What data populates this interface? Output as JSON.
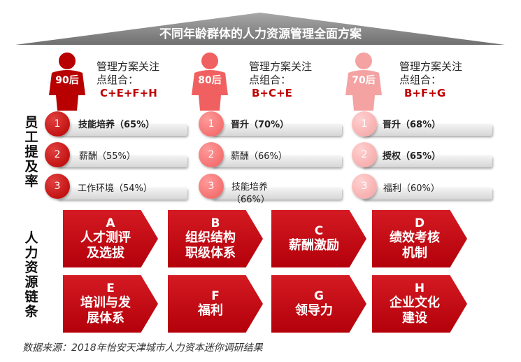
{
  "title": "不同年龄群体的人力资源管理全面方案",
  "groups": [
    {
      "gen": "90后",
      "focus_label_1": "管理方案关注",
      "focus_label_2": "点组合：",
      "combo": "C+E+F+H"
    },
    {
      "gen": "80后",
      "focus_label_1": "管理方案关注",
      "focus_label_2": "点组合：",
      "combo": "B+C+E"
    },
    {
      "gen": "70后",
      "focus_label_1": "管理方案关注",
      "focus_label_2": "点组合：",
      "combo": "B+F+G"
    }
  ],
  "side_titles": {
    "employee_promotion": [
      "员",
      "工",
      "提",
      "及",
      "率"
    ],
    "hr_chain": [
      "人",
      "力",
      "资",
      "源",
      "链",
      "条"
    ]
  },
  "rankings": [
    [
      {
        "num": "1",
        "text": "技能培养（65%）",
        "bold": true
      },
      {
        "num": "2",
        "text": "薪酬（55%）",
        "bold": false
      },
      {
        "num": "3",
        "text": "工作环境（54%）",
        "bold": false
      }
    ],
    [
      {
        "num": "1",
        "text": "晋升（70%）",
        "bold": true
      },
      {
        "num": "2",
        "text": "薪酬（66%）",
        "bold": false
      },
      {
        "num": "3",
        "text_1": "技能培养",
        "text_2": "（66%）",
        "bold": false
      }
    ],
    [
      {
        "num": "1",
        "text": "晋升（68%）",
        "bold": true
      },
      {
        "num": "2",
        "text": "授权（65%）",
        "bold": true
      },
      {
        "num": "3",
        "text": "福利（60%）",
        "bold": false
      }
    ]
  ],
  "chain": [
    {
      "code": "A",
      "line1": "人才测评",
      "line2": "及选拔"
    },
    {
      "code": "B",
      "line1": "组织结构",
      "line2": "职级体系"
    },
    {
      "code": "C",
      "line1": "薪酬激励",
      "line2": ""
    },
    {
      "code": "D",
      "line1": "绩效考核",
      "line2": "机制"
    },
    {
      "code": "E",
      "line1": "培训与发",
      "line2": "展体系"
    },
    {
      "code": "F",
      "line1": "福利",
      "line2": ""
    },
    {
      "code": "G",
      "line1": "领导力",
      "line2": ""
    },
    {
      "code": "H",
      "line1": "企业文化",
      "line2": "建设"
    }
  ],
  "source": "数据来源：2018年怡安天津城市人力资本迷你调研结果",
  "colors": {
    "dark_red": "#b80000",
    "mid_red": "#f06060",
    "light_red": "#f4a2a2",
    "banner_gray": "#8c8c8c"
  },
  "icons": [
    "person-icon"
  ]
}
